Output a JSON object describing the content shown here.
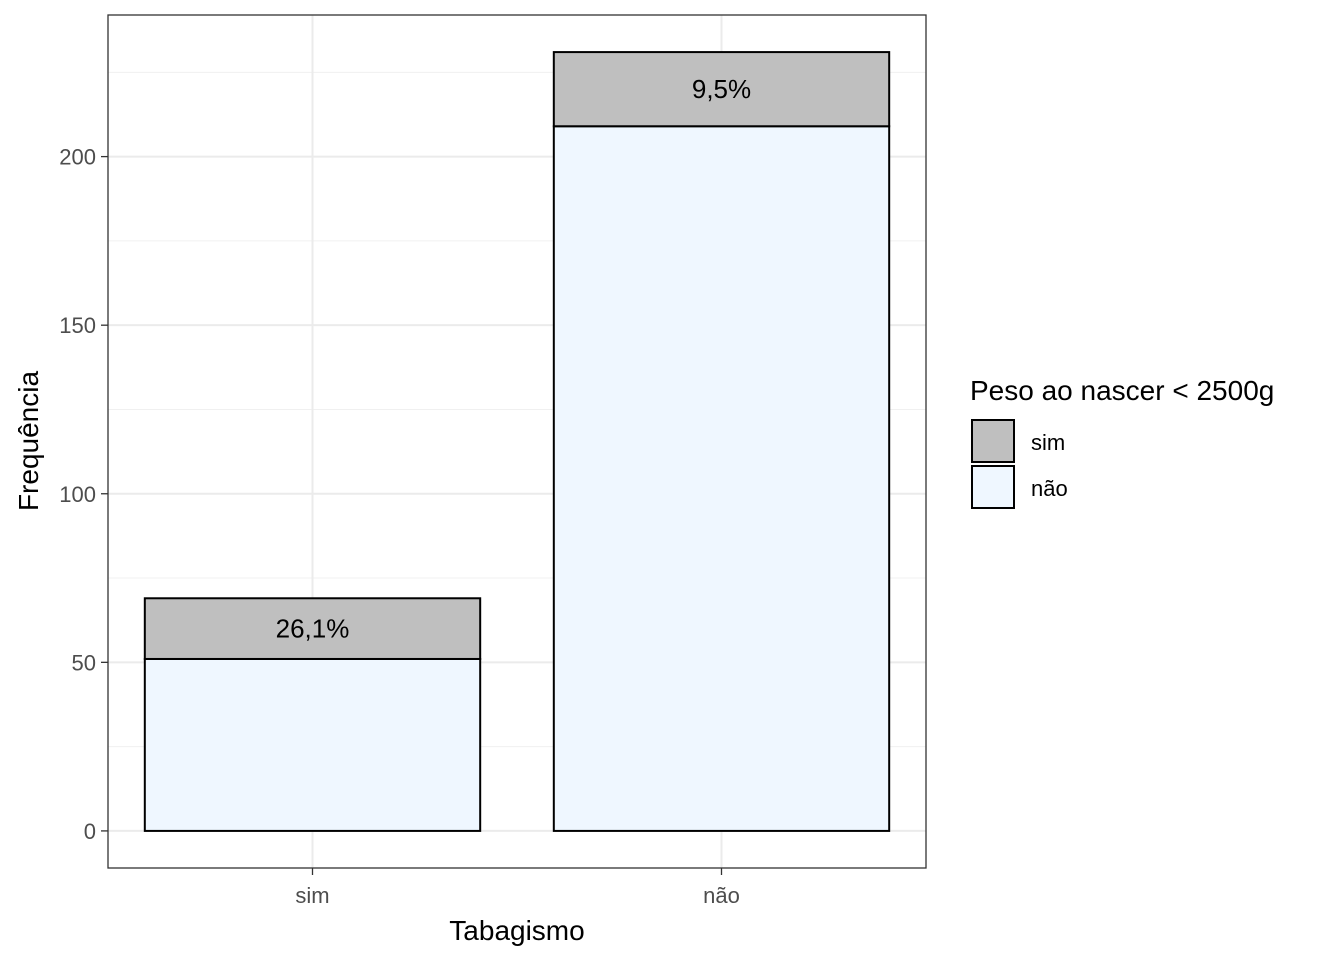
{
  "chart_data": {
    "type": "bar",
    "stacked": true,
    "categories": [
      "sim",
      "não"
    ],
    "series": [
      {
        "name": "não",
        "values": [
          51,
          209
        ],
        "color": "#eff7ff"
      },
      {
        "name": "sim",
        "values": [
          18,
          22
        ],
        "color": "#bfbfbf"
      }
    ],
    "bar_labels": [
      "26,1%",
      "9,5%"
    ],
    "xlabel": "Tabagismo",
    "ylabel": "Frequência",
    "ylim": [
      -11,
      242
    ],
    "yticks": [
      0,
      50,
      100,
      150,
      200
    ],
    "ytick_labels": [
      "0",
      "50",
      "100",
      "150",
      "200"
    ],
    "grid": true,
    "legend": {
      "title": "Peso ao nascer < 2500g",
      "placement": "right",
      "items": [
        {
          "label": "sim",
          "color": "#bfbfbf"
        },
        {
          "label": "não",
          "color": "#eff7ff"
        }
      ]
    }
  }
}
